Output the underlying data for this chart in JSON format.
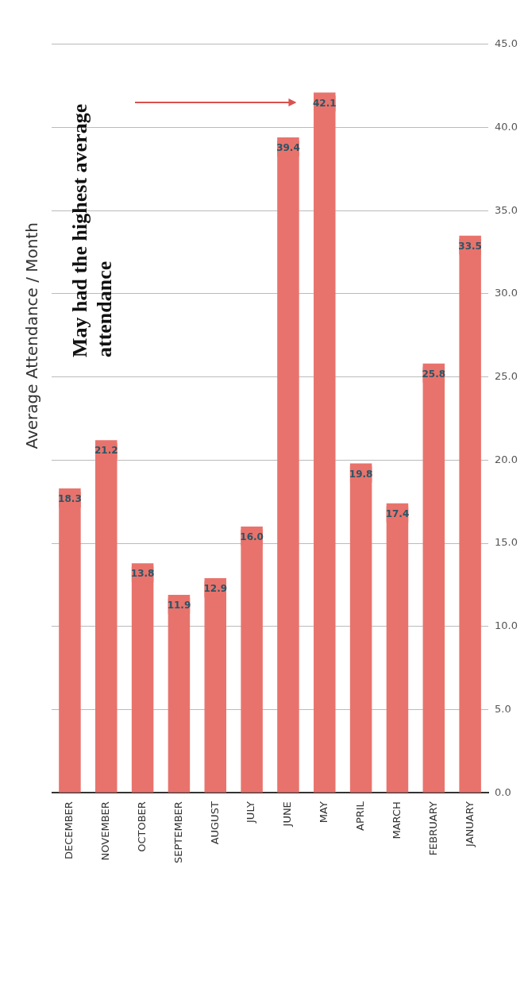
{
  "chart_data": {
    "type": "bar",
    "title": "Average Attendance / Month",
    "categories": [
      "DECEMBER",
      "NOVEMBER",
      "OCTOBER",
      "SEPTEMBER",
      "AUGUST",
      "JULY",
      "JUNE",
      "MAY",
      "APRIL",
      "MARCH",
      "FEBRUARY",
      "JANUARY"
    ],
    "values": [
      18.3,
      21.2,
      13.8,
      11.9,
      12.9,
      16.0,
      39.4,
      42.1,
      19.8,
      17.4,
      25.8,
      33.5
    ],
    "color": "#e8736c",
    "ylim": [
      0,
      45
    ],
    "yticks": [
      {
        "value": 0,
        "label": "0.0"
      },
      {
        "value": 5,
        "label": "5.0"
      },
      {
        "value": 10,
        "label": "10.0"
      },
      {
        "value": 15,
        "label": "15.0"
      },
      {
        "value": 20,
        "label": "20.0"
      },
      {
        "value": 25,
        "label": "25.0"
      },
      {
        "value": 30,
        "label": "30.0"
      },
      {
        "value": 35,
        "label": "35.0"
      },
      {
        "value": 40,
        "label": "40.0"
      },
      {
        "value": 45,
        "label": "45.0"
      }
    ],
    "value_labels": [
      "18.3",
      "21.2",
      "13.8",
      "11.9",
      "12.9",
      "16.0",
      "39.4",
      "42.1",
      "19.8",
      "17.4",
      "25.8",
      "33.5"
    ],
    "grid": "y",
    "legend": false,
    "annotations": [
      "May had the highest average attendance"
    ]
  }
}
